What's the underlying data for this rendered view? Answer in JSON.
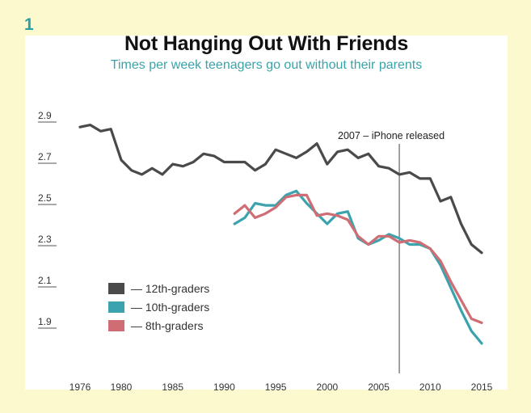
{
  "badge": "1",
  "chart_data": {
    "type": "line",
    "title": "Not Hanging Out With Friends",
    "subtitle": "Times per week teenagers go out without their parents",
    "xlabel": "",
    "ylabel": "",
    "xlim": [
      1976,
      2015
    ],
    "ylim": [
      1.8,
      3.0
    ],
    "x_ticks": [
      1976,
      1980,
      1985,
      1990,
      1995,
      2000,
      2005,
      2010,
      2015
    ],
    "y_ticks": [
      1.9,
      2.1,
      2.3,
      2.5,
      2.7,
      2.9
    ],
    "y_tick_labels": [
      "1.9",
      "2.1",
      "2.3",
      "2.5",
      "2.7",
      "2.9"
    ],
    "grid": false,
    "legend_position": "bottom-left",
    "annotation": {
      "x": 2007,
      "label": "2007 – iPhone released"
    },
    "colors": {
      "12th": "#4a4a4a",
      "10th": "#3ba3ae",
      "8th": "#cf6d74",
      "annotation_line": "#444444",
      "background": "#fdf9cf"
    },
    "series": [
      {
        "name": "12th-graders",
        "legend_label": "— 12th-graders",
        "color": "#4a4a4a",
        "x": [
          1976,
          1977,
          1978,
          1979,
          1980,
          1981,
          1982,
          1983,
          1984,
          1985,
          1986,
          1987,
          1988,
          1989,
          1990,
          1991,
          1992,
          1993,
          1994,
          1995,
          1996,
          1997,
          1998,
          1999,
          2000,
          2001,
          2002,
          2003,
          2004,
          2005,
          2006,
          2007,
          2008,
          2009,
          2010,
          2011,
          2012,
          2013,
          2014,
          2015
        ],
        "y": [
          2.86,
          2.87,
          2.84,
          2.85,
          2.7,
          2.65,
          2.63,
          2.66,
          2.63,
          2.68,
          2.67,
          2.69,
          2.73,
          2.72,
          2.69,
          2.69,
          2.69,
          2.65,
          2.68,
          2.75,
          2.73,
          2.71,
          2.74,
          2.78,
          2.68,
          2.74,
          2.75,
          2.71,
          2.73,
          2.67,
          2.66,
          2.63,
          2.64,
          2.61,
          2.61,
          2.5,
          2.52,
          2.39,
          2.29,
          2.25
        ]
      },
      {
        "name": "10th-graders",
        "legend_label": "— 10th-graders",
        "color": "#3ba3ae",
        "x": [
          1991,
          1992,
          1993,
          1994,
          1995,
          1996,
          1997,
          1998,
          1999,
          2000,
          2001,
          2002,
          2003,
          2004,
          2005,
          2006,
          2007,
          2008,
          2009,
          2010,
          2011,
          2012,
          2013,
          2014,
          2015
        ],
        "y": [
          2.39,
          2.42,
          2.49,
          2.48,
          2.48,
          2.53,
          2.55,
          2.49,
          2.44,
          2.39,
          2.44,
          2.45,
          2.32,
          2.29,
          2.31,
          2.34,
          2.32,
          2.29,
          2.29,
          2.27,
          2.19,
          2.08,
          1.97,
          1.87,
          1.81
        ]
      },
      {
        "name": "8th-graders",
        "legend_label": "— 8th-graders",
        "color": "#cf6d74",
        "x": [
          1991,
          1992,
          1993,
          1994,
          1995,
          1996,
          1997,
          1998,
          1999,
          2000,
          2001,
          2002,
          2003,
          2004,
          2005,
          2006,
          2007,
          2008,
          2009,
          2010,
          2011,
          2012,
          2013,
          2014,
          2015
        ],
        "y": [
          2.44,
          2.48,
          2.42,
          2.44,
          2.47,
          2.52,
          2.53,
          2.53,
          2.43,
          2.44,
          2.43,
          2.41,
          2.33,
          2.29,
          2.33,
          2.33,
          2.3,
          2.31,
          2.3,
          2.27,
          2.21,
          2.11,
          2.02,
          1.93,
          1.91
        ]
      }
    ]
  }
}
